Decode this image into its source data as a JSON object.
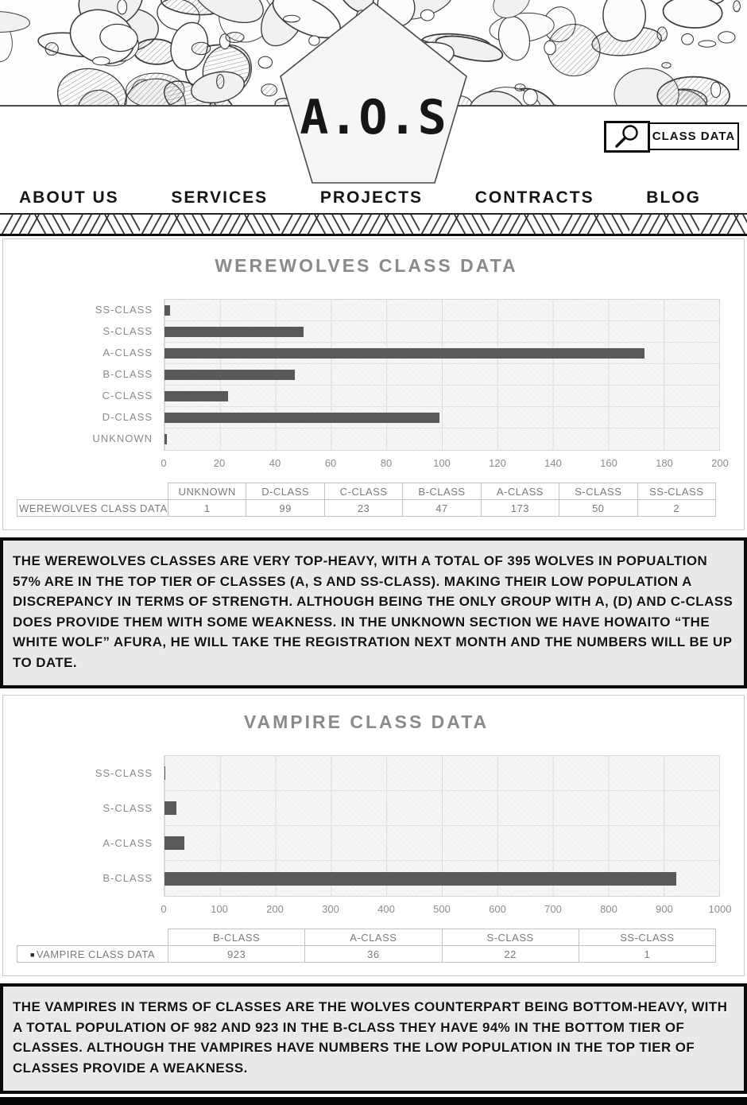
{
  "header": {
    "logo": {
      "text": "A.O.S"
    },
    "search": {
      "icon": "magnifier-icon",
      "value": "CLASS DATA"
    },
    "nav": [
      "ABOUT US",
      "SERVICES",
      "PROJECTS",
      "CONTRACTS",
      "BLOG"
    ]
  },
  "colors": {
    "bar": "#595959",
    "chart_text": "#8a8a8a",
    "paragraph_bg": "#e9e9e9",
    "border_black": "#0a0a0a"
  },
  "chart_data": [
    {
      "type": "bar",
      "orientation": "horizontal",
      "title": "WEREWOLVES CLASS DATA",
      "series_name": "WEREWOLVES CLASS DATA",
      "categories": [
        "SS-CLASS",
        "S-CLASS",
        "A-CLASS",
        "B-CLASS",
        "C-CLASS",
        "D-CLASS",
        "UNKNOWN"
      ],
      "values": [
        2,
        50,
        173,
        47,
        23,
        99,
        1
      ],
      "xlim": [
        0,
        200
      ],
      "xticks": [
        0,
        20,
        40,
        60,
        80,
        100,
        120,
        140,
        160,
        180,
        200
      ],
      "grid": true,
      "legend_position": "none"
    },
    {
      "type": "bar",
      "orientation": "horizontal",
      "title": "VAMPIRE CLASS DATA",
      "series_name": "VAMPIRE CLASS DATA",
      "categories": [
        "SS-CLASS",
        "S-CLASS",
        "A-CLASS",
        "B-CLASS"
      ],
      "values": [
        1,
        22,
        36,
        923
      ],
      "xlim": [
        0,
        1000
      ],
      "xticks": [
        0,
        100,
        200,
        300,
        400,
        500,
        600,
        700,
        800,
        900,
        1000
      ],
      "grid": true,
      "legend_position": "table-row-label"
    }
  ],
  "sections": [
    {
      "title": "WEREWOLVES CLASS DATA",
      "table": {
        "row_label": "WEREWOLVES CLASS DATA",
        "legend_marker": "",
        "columns": [
          "UNKNOWN",
          "D-CLASS",
          "C-CLASS",
          "B-CLASS",
          "A-CLASS",
          "S-CLASS",
          "SS-CLASS"
        ],
        "values": [
          "1",
          "99",
          "23",
          "47",
          "173",
          "50",
          "2"
        ]
      },
      "summary": "THE WEREWOLVES CLASSES ARE VERY TOP-HEAVY, WITH A TOTAL OF 395 WOLVES IN POPUALTION 57% ARE IN THE TOP TIER OF CLASSES (A, S AND SS-CLASS). MAKING THEIR LOW POPULATION A DISCREPANCY IN TERMS OF STRENGTH. ALTHOUGH BEING THE ONLY GROUP WITH A, (D) AND C-CLASS DOES PROVIDE THEM WITH SOME WEAKNESS. IN THE UNKNOWN SECTION WE HAVE HOWAITO “THE WHITE WOLF” AFURA, HE WILL TAKE THE REGISTRATION NEXT MONTH AND THE NUMBERS WILL BE UP TO DATE."
    },
    {
      "title": "VAMPIRE CLASS DATA",
      "table": {
        "row_label": "VAMPIRE CLASS DATA",
        "legend_marker": "■",
        "columns": [
          "B-CLASS",
          "A-CLASS",
          "S-CLASS",
          "SS-CLASS"
        ],
        "values": [
          "923",
          "36",
          "22",
          "1"
        ]
      },
      "summary": "THE VAMPIRES IN TERMS OF CLASSES ARE THE WOLVES COUNTERPART BEING BOTTOM-HEAVY, WITH A TOTAL POPULATION OF 982 AND 923 IN THE B-CLASS THEY HAVE 94% IN THE BOTTOM TIER OF CLASSES. ALTHOUGH THE VAMPIRES HAVE NUMBERS THE LOW POPULATION IN THE TOP TIER OF CLASSES PROVIDE A WEAKNESS."
    }
  ]
}
